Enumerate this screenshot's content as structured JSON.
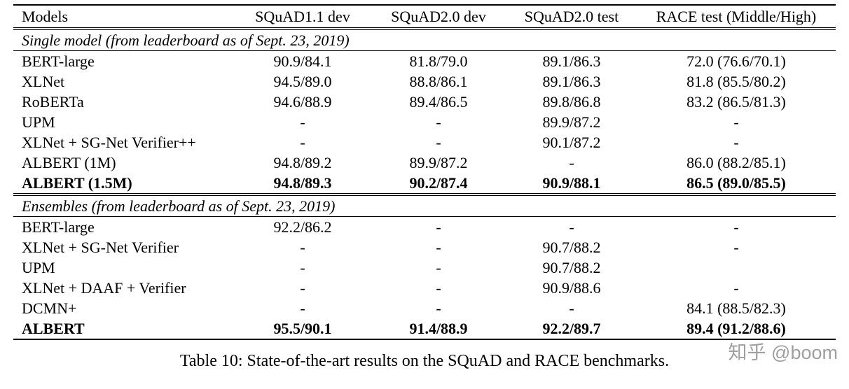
{
  "table": {
    "columns": [
      "Models",
      "SQuAD1.1 dev",
      "SQuAD2.0 dev",
      "SQuAD2.0 test",
      "RACE test (Middle/High)"
    ],
    "sections": [
      {
        "label": "Single model (from leaderboard as of Sept. 23, 2019)",
        "rows": [
          {
            "model": "BERT-large",
            "cells": [
              "90.9/84.1",
              "81.8/79.0",
              "89.1/86.3",
              "72.0 (76.6/70.1)"
            ],
            "bold": false
          },
          {
            "model": "XLNet",
            "cells": [
              "94.5/89.0",
              "88.8/86.1",
              "89.1/86.3",
              "81.8 (85.5/80.2)"
            ],
            "bold": false
          },
          {
            "model": "RoBERTa",
            "cells": [
              "94.6/88.9",
              "89.4/86.5",
              "89.8/86.8",
              "83.2 (86.5/81.3)"
            ],
            "bold": false
          },
          {
            "model": "UPM",
            "cells": [
              "-",
              "-",
              "89.9/87.2",
              "-"
            ],
            "bold": false
          },
          {
            "model": "XLNet + SG-Net Verifier++",
            "cells": [
              "-",
              "-",
              "90.1/87.2",
              "-"
            ],
            "bold": false
          },
          {
            "model": "ALBERT (1M)",
            "cells": [
              "94.8/89.2",
              "89.9/87.2",
              "-",
              "86.0 (88.2/85.1)"
            ],
            "bold": false
          },
          {
            "model": "ALBERT (1.5M)",
            "cells": [
              "94.8/89.3",
              "90.2/87.4",
              "90.9/88.1",
              "86.5 (89.0/85.5)"
            ],
            "bold": true
          }
        ]
      },
      {
        "label": "Ensembles (from leaderboard as of Sept. 23, 2019)",
        "rows": [
          {
            "model": "BERT-large",
            "cells": [
              "92.2/86.2",
              "-",
              "-",
              "-"
            ],
            "bold": false
          },
          {
            "model": "XLNet + SG-Net Verifier",
            "cells": [
              "-",
              "-",
              "90.7/88.2",
              "-"
            ],
            "bold": false
          },
          {
            "model": "UPM",
            "cells": [
              "-",
              "-",
              "90.7/88.2",
              ""
            ],
            "bold": false
          },
          {
            "model": "XLNet + DAAF + Verifier",
            "cells": [
              "-",
              "-",
              "90.9/88.6",
              "-"
            ],
            "bold": false
          },
          {
            "model": "DCMN+",
            "cells": [
              "-",
              "-",
              "-",
              "84.1 (88.5/82.3)"
            ],
            "bold": false
          },
          {
            "model": "ALBERT",
            "cells": [
              "95.5/90.1",
              "91.4/88.9",
              "92.2/89.7",
              "89.4 (91.2/88.6)"
            ],
            "bold": true
          }
        ]
      }
    ]
  },
  "caption": "Table 10: State-of-the-art results on the SQuAD and RACE benchmarks.",
  "watermark": "知乎 @boom",
  "colors": {
    "text": "#000000",
    "watermark": "#9f9f9f",
    "background": "#ffffff"
  }
}
